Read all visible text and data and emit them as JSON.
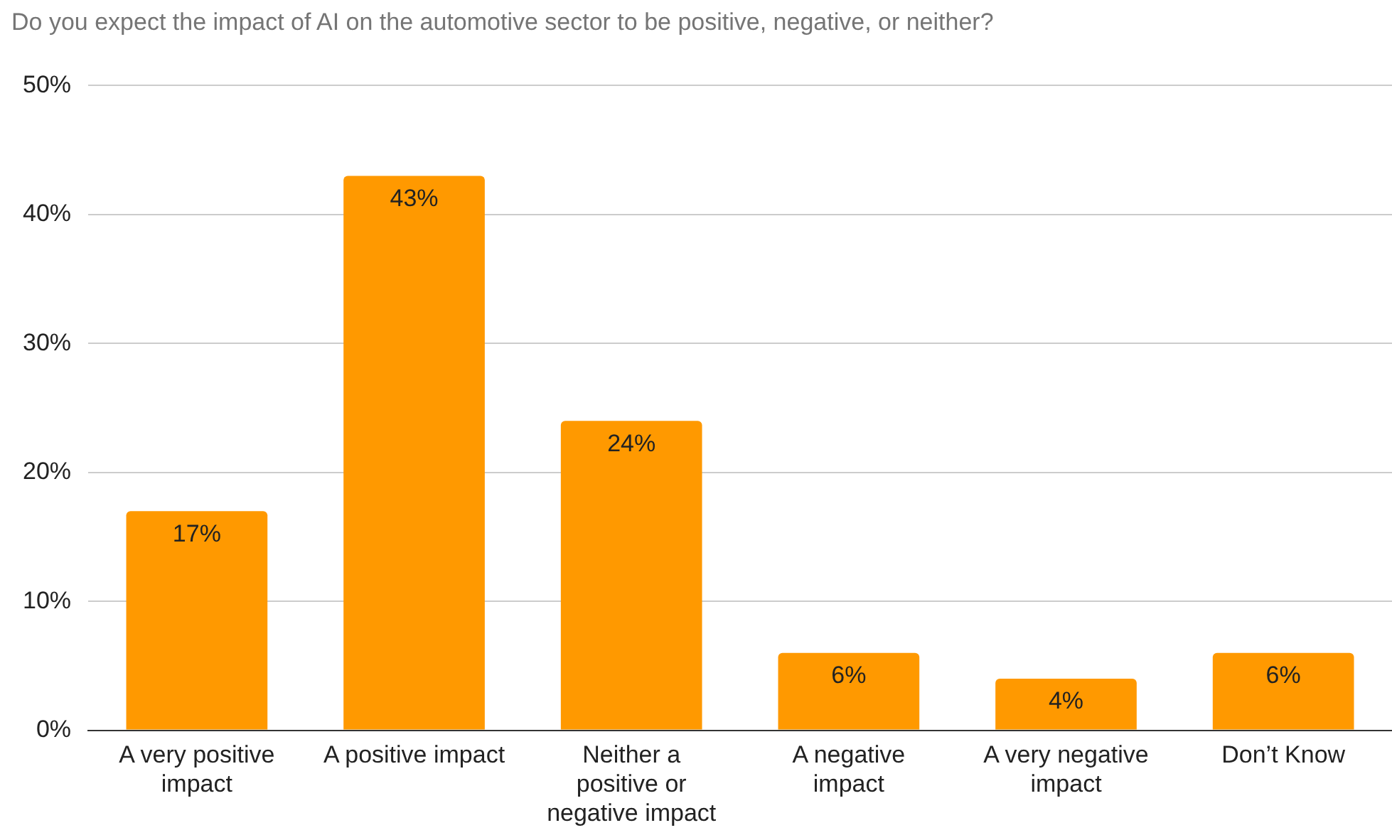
{
  "chart_data": {
    "type": "bar",
    "title": "Do you expect the impact of AI on the automotive sector to be positive, negative, or neither?",
    "categories": [
      "A very positive impact",
      "A positive impact",
      "Neither a positive or negative impact",
      "A negative impact",
      "A very negative impact",
      "Don’t Know"
    ],
    "values": [
      17,
      43,
      24,
      6,
      4,
      6
    ],
    "value_labels": [
      "17%",
      "43%",
      "24%",
      "6%",
      "4%",
      "6%"
    ],
    "color": "#ff9900",
    "ylim": [
      0,
      50
    ],
    "yticks": [
      {
        "value": 0,
        "label": "0%"
      },
      {
        "value": 10,
        "label": "10%"
      },
      {
        "value": 20,
        "label": "20%"
      },
      {
        "value": 30,
        "label": "30%"
      },
      {
        "value": 40,
        "label": "40%"
      },
      {
        "value": 50,
        "label": "50%"
      }
    ],
    "grid": "y",
    "legend": false
  }
}
